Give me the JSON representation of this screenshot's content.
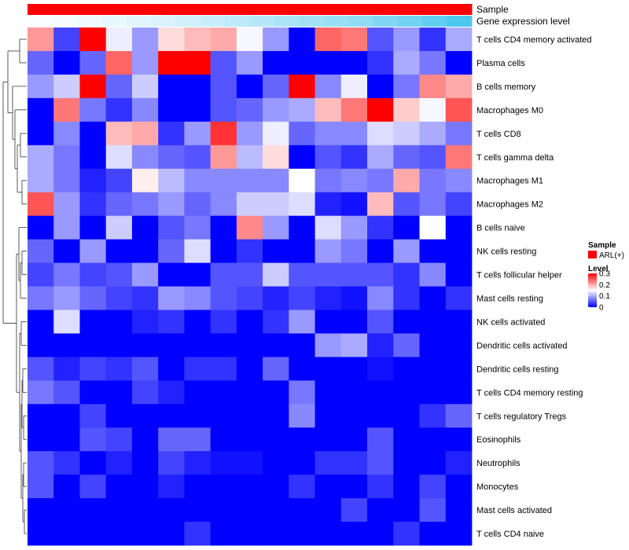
{
  "chart_data": {
    "type": "heatmap",
    "annotations": {
      "sample_label": "Sample",
      "expression_label": "Gene expression level",
      "sample_color": "#FF0000",
      "expression_low_color": "#FFFFFF",
      "expression_high_color": "#45C4EE"
    },
    "legend": {
      "sample_title": "Sample",
      "sample_item": "ARL(+)",
      "level_title": "Level",
      "level_ticks": [
        "0.3",
        "0.2",
        "0.1",
        "0"
      ],
      "tick_values": [
        0.3,
        0.2,
        0.1,
        0
      ],
      "range": [
        0,
        0.3
      ]
    },
    "colors": {
      "low": "#0000FF",
      "mid": "#FFFFFF",
      "high": "#FF0000"
    },
    "rows": [
      "T cells CD4 memory activated",
      "Plasma cells",
      "B cells memory",
      "Macrophages M0",
      "T cells CD8",
      "T cells gamma delta",
      "Macrophages M1",
      "Macrophages M2",
      "B cells naive",
      "NK cells resting",
      "T cells follicular helper",
      "Mast cells resting",
      "NK cells activated",
      "Dendritic cells activated",
      "Dendritic cells resting",
      "T cells CD4 memory resting",
      "T cells regulatory  Tregs",
      "Eosinophils",
      "Neutrophils",
      "Monocytes",
      "Mast cells activated",
      "T cells CD4 naive"
    ],
    "expression_levels": [
      0.02,
      0.05,
      0.08,
      0.12,
      0.16,
      0.2,
      0.25,
      0.3,
      0.35,
      0.4,
      0.45,
      0.5,
      0.55,
      0.6,
      0.68,
      0.76,
      0.85,
      0.95
    ],
    "values": [
      [
        0.21,
        0.04,
        0.3,
        0.14,
        0.09,
        0.17,
        0.19,
        0.2,
        0.145,
        0.09,
        0,
        0.24,
        0.23,
        0.05,
        0.09,
        0.03,
        0.1
      ],
      [
        0.06,
        0,
        0.06,
        0.24,
        0.09,
        0.3,
        0.3,
        0.05,
        0.09,
        0,
        0,
        0,
        0,
        0.03,
        0.1,
        0.07,
        0
      ],
      [
        0.09,
        0.12,
        0.3,
        0.06,
        0.12,
        0,
        0,
        0.05,
        0,
        0.06,
        0.3,
        0.08,
        0.14,
        0,
        0.07,
        0.22,
        0.2
      ],
      [
        0,
        0.23,
        0.07,
        0.03,
        0.08,
        0,
        0,
        0.05,
        0.06,
        0.09,
        0.1,
        0.19,
        0.23,
        0.3,
        0.18,
        0.145,
        0.25
      ],
      [
        0,
        0.08,
        0,
        0.19,
        0.2,
        0.03,
        0.09,
        0.27,
        0.09,
        0.14,
        0.06,
        0.08,
        0.08,
        0.13,
        0.12,
        0.1,
        0.07
      ],
      [
        0.1,
        0.07,
        0,
        0.13,
        0.08,
        0.06,
        0.05,
        0.21,
        0.11,
        0.17,
        0,
        0.05,
        0.03,
        0.1,
        0.06,
        0.05,
        0.23
      ],
      [
        0.1,
        0.07,
        0.02,
        0.04,
        0.16,
        0.11,
        0.08,
        0.08,
        0.08,
        0.08,
        0.15,
        0.07,
        0.08,
        0.07,
        0.2,
        0.07,
        0.08
      ],
      [
        0.25,
        0.09,
        0.03,
        0.06,
        0.07,
        0.09,
        0.06,
        0.08,
        0.12,
        0.12,
        0.13,
        0.02,
        0.01,
        0.19,
        0.05,
        0.07,
        0.04
      ],
      [
        0,
        0.09,
        0,
        0.12,
        0,
        0.05,
        0.07,
        0,
        0.22,
        0.09,
        0,
        0.13,
        0.09,
        0.03,
        0,
        0.15,
        0
      ],
      [
        0.06,
        0,
        0.09,
        0,
        0,
        0.06,
        0.13,
        0,
        0.03,
        0,
        0,
        0.09,
        0.07,
        0,
        0.09,
        0,
        0
      ],
      [
        0.04,
        0.07,
        0.04,
        0.05,
        0.09,
        0,
        0,
        0.05,
        0.05,
        0.12,
        0.05,
        0.05,
        0.05,
        0.05,
        0.03,
        0.08,
        0
      ],
      [
        0.07,
        0.09,
        0.06,
        0.04,
        0.03,
        0.09,
        0.08,
        0.05,
        0.04,
        0.02,
        0.04,
        0.02,
        0.01,
        0.08,
        0.03,
        0,
        0.03
      ],
      [
        0,
        0.13,
        0,
        0,
        0.02,
        0.03,
        0,
        0.03,
        0,
        0.03,
        0.09,
        0,
        0,
        0.05,
        0,
        0,
        0
      ],
      [
        0,
        0,
        0,
        0,
        0,
        0,
        0,
        0,
        0,
        0,
        0,
        0.09,
        0.1,
        0.02,
        0.06,
        0,
        0
      ],
      [
        0.05,
        0.02,
        0.04,
        0.03,
        0.05,
        0,
        0.03,
        0.03,
        0,
        0.06,
        0,
        0,
        0,
        0.01,
        0,
        0,
        0
      ],
      [
        0.07,
        0.05,
        0,
        0,
        0.04,
        0.02,
        0,
        0,
        0,
        0,
        0.07,
        0,
        0,
        0,
        0,
        0,
        0
      ],
      [
        0,
        0,
        0.04,
        0,
        0,
        0,
        0,
        0,
        0,
        0,
        0.08,
        0,
        0,
        0,
        0,
        0.03,
        0.06
      ],
      [
        0,
        0,
        0.05,
        0.04,
        0,
        0.06,
        0.06,
        0,
        0,
        0,
        0,
        0,
        0,
        0.05,
        0,
        0,
        0
      ],
      [
        0.05,
        0.03,
        0,
        0.02,
        0,
        0.04,
        0.02,
        0.01,
        0.01,
        0,
        0,
        0.03,
        0.03,
        0.05,
        0,
        0,
        0.02
      ],
      [
        0.05,
        0,
        0.04,
        0,
        0,
        0.02,
        0,
        0,
        0,
        0,
        0.03,
        0,
        0,
        0.03,
        0,
        0.04,
        0
      ],
      [
        0,
        0,
        0,
        0,
        0,
        0,
        0,
        0,
        0,
        0,
        0,
        0,
        0.04,
        0,
        0,
        0.05,
        0
      ],
      [
        0,
        0,
        0,
        0,
        0,
        0,
        0.03,
        0,
        0,
        0,
        0,
        0,
        0,
        0,
        0.03,
        0,
        0
      ]
    ]
  }
}
